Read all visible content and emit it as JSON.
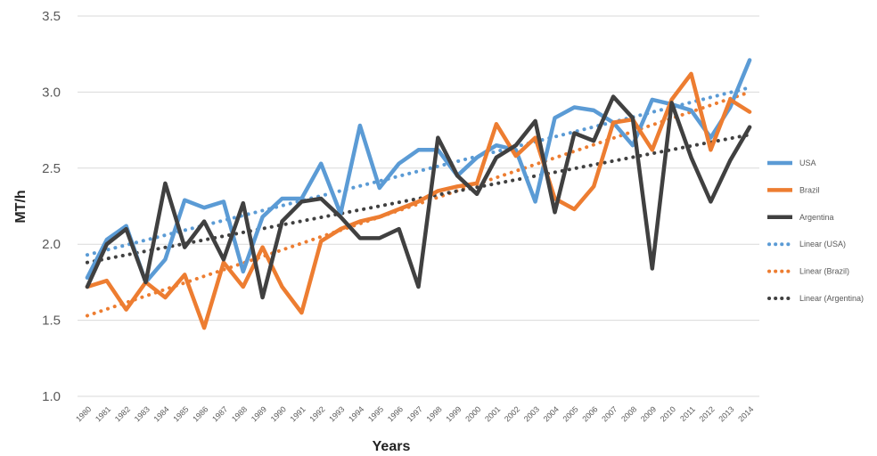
{
  "chart_data": {
    "type": "line",
    "xlabel": "Years",
    "ylabel": "MT/h",
    "ylim": [
      1.0,
      3.5
    ],
    "yticks": [
      "1.0",
      "1.5",
      "2.0",
      "2.5",
      "3.0",
      "3.5"
    ],
    "grid": "horizontal",
    "legend_position": "right",
    "x": [
      "1980",
      "1981",
      "1982",
      "1983",
      "1984",
      "1985",
      "1986",
      "1987",
      "1988",
      "1989",
      "1990",
      "1991",
      "1992",
      "1993",
      "1994",
      "1995",
      "1996",
      "1997",
      "1998",
      "1999",
      "2000",
      "2001",
      "2002",
      "2003",
      "2004",
      "2005",
      "2006",
      "2007",
      "2008",
      "2009",
      "2010",
      "2011",
      "2012",
      "2013",
      "2014"
    ],
    "series": [
      {
        "name": "USA",
        "color": "#5B9BD5",
        "values": [
          1.78,
          2.03,
          2.12,
          1.75,
          1.9,
          2.29,
          2.24,
          2.28,
          1.82,
          2.18,
          2.3,
          2.3,
          2.53,
          2.2,
          2.78,
          2.37,
          2.53,
          2.62,
          2.62,
          2.45,
          2.57,
          2.65,
          2.62,
          2.28,
          2.83,
          2.9,
          2.88,
          2.8,
          2.65,
          2.95,
          2.92,
          2.88,
          2.7,
          2.9,
          3.21
        ]
      },
      {
        "name": "Brazil",
        "color": "#ED7D31",
        "values": [
          1.72,
          1.76,
          1.57,
          1.75,
          1.65,
          1.8,
          1.45,
          1.88,
          1.72,
          1.98,
          1.72,
          1.55,
          2.02,
          2.1,
          2.15,
          2.18,
          2.23,
          2.28,
          2.35,
          2.38,
          2.4,
          2.79,
          2.58,
          2.7,
          2.3,
          2.23,
          2.38,
          2.8,
          2.82,
          2.62,
          2.95,
          3.12,
          2.62,
          2.95,
          2.87
        ]
      },
      {
        "name": "Argentina",
        "color": "#404040",
        "values": [
          1.72,
          2.0,
          2.1,
          1.75,
          2.4,
          1.98,
          2.15,
          1.9,
          2.27,
          1.65,
          2.15,
          2.28,
          2.3,
          2.18,
          2.04,
          2.04,
          2.1,
          1.72,
          2.7,
          2.45,
          2.33,
          2.57,
          2.65,
          2.81,
          2.21,
          2.73,
          2.68,
          2.97,
          2.83,
          1.84,
          2.93,
          2.57,
          2.28,
          2.55,
          2.77
        ]
      }
    ],
    "trendlines": [
      {
        "name": "Linear (USA)",
        "color": "#5B9BD5",
        "start": 1.93,
        "end": 3.03
      },
      {
        "name": "Linear (Brazil)",
        "color": "#ED7D31",
        "start": 1.53,
        "end": 3.0
      },
      {
        "name": "Linear (Argentina)",
        "color": "#404040",
        "start": 1.88,
        "end": 2.72
      }
    ]
  }
}
